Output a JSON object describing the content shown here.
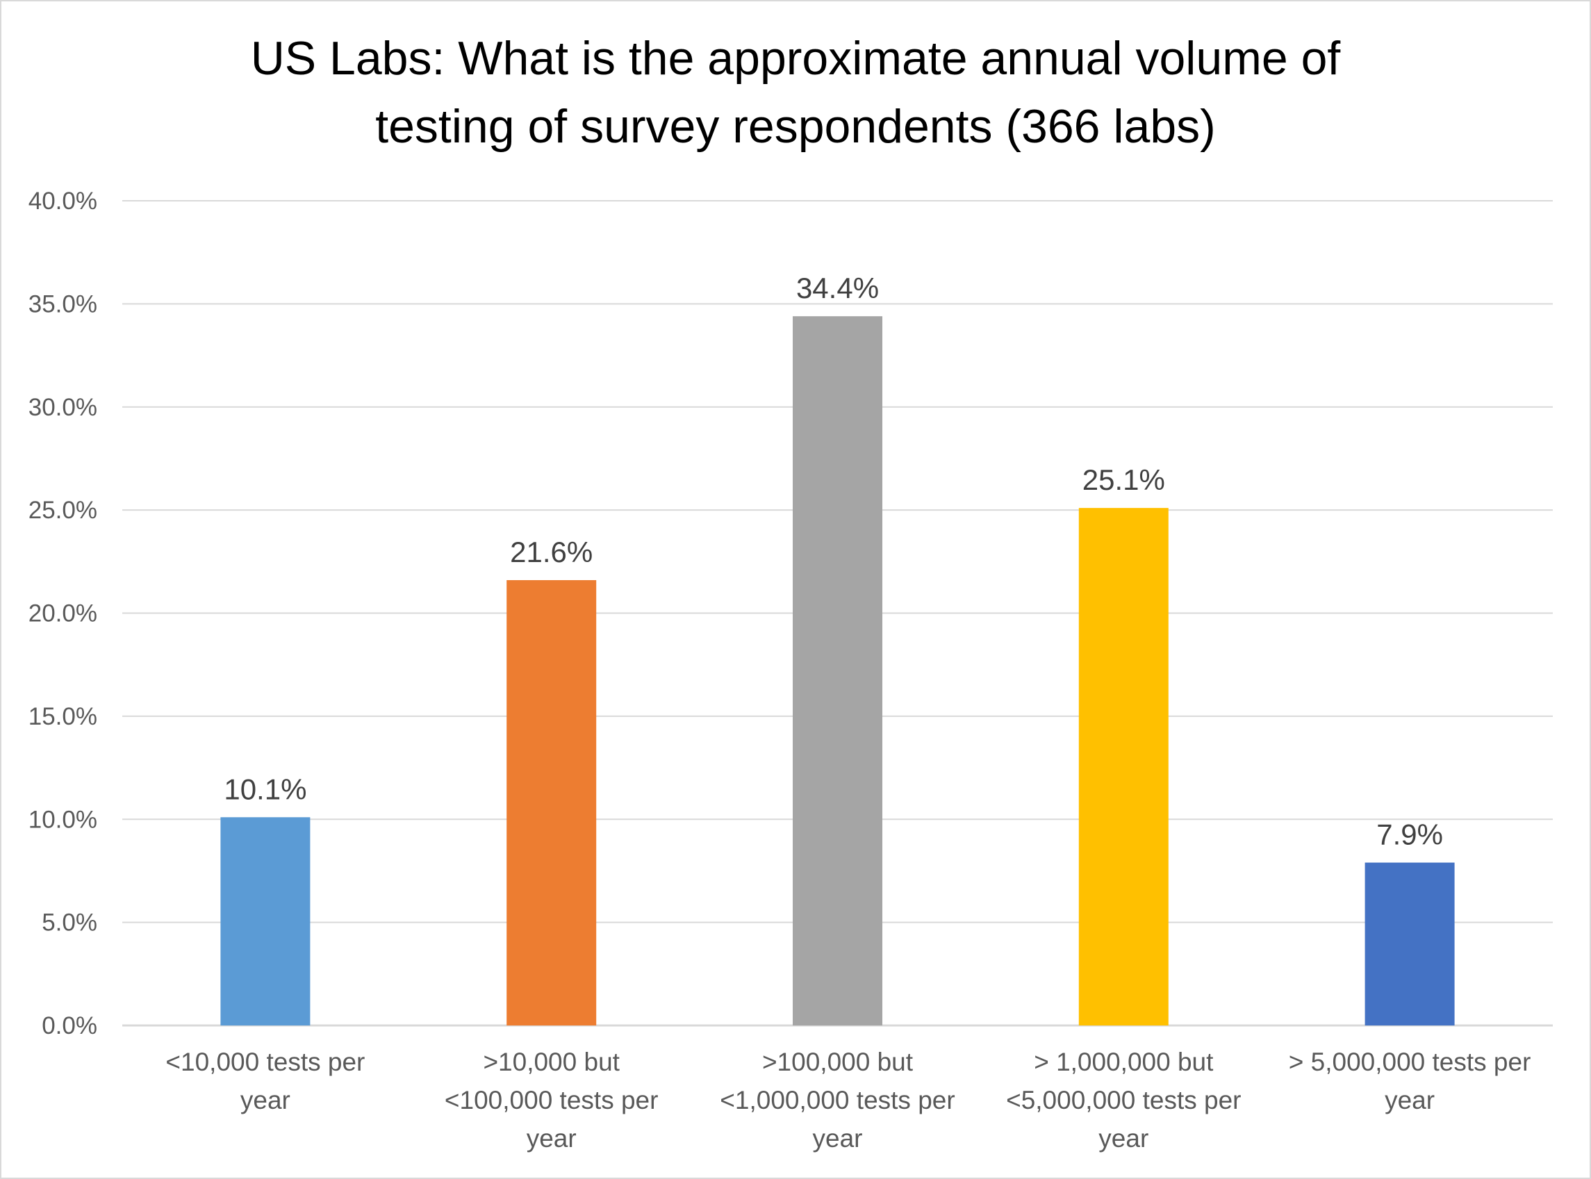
{
  "chart_data": {
    "type": "bar",
    "title_lines": [
      "US Labs: What is the approximate annual volume of",
      "testing of survey respondents (366 labs)"
    ],
    "categories": [
      [
        "<10,000 tests per",
        "year"
      ],
      [
        ">10,000 but",
        "<100,000 tests per",
        "year"
      ],
      [
        ">100,000 but",
        "<1,000,000 tests per",
        "year"
      ],
      [
        "> 1,000,000 but",
        "<5,000,000 tests per",
        "year"
      ],
      [
        "> 5,000,000 tests per",
        "year"
      ]
    ],
    "values": [
      10.1,
      21.6,
      34.4,
      25.1,
      7.9
    ],
    "data_labels": [
      "10.1%",
      "21.6%",
      "34.4%",
      "25.1%",
      "7.9%"
    ],
    "colors": [
      "#5b9bd5",
      "#ed7d31",
      "#a5a5a5",
      "#ffc000",
      "#4472c4"
    ],
    "ylim": [
      0,
      40
    ],
    "yticks": [
      0,
      5,
      10,
      15,
      20,
      25,
      30,
      35,
      40
    ],
    "ytick_labels": [
      "0.0%",
      "5.0%",
      "10.0%",
      "15.0%",
      "20.0%",
      "25.0%",
      "30.0%",
      "35.0%",
      "40.0%"
    ],
    "xlabel": "",
    "ylabel": "",
    "grid": true,
    "legend": "none"
  }
}
